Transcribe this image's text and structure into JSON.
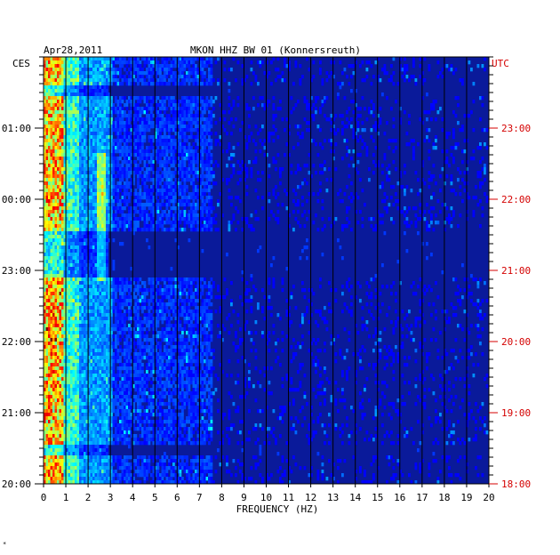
{
  "header": {
    "date": "Apr28,2011",
    "station": "MKON HHZ BW 01 (Konnersreuth)"
  },
  "left_zone_label": "CES",
  "right_zone_label": "UTC",
  "footer_mark": "*",
  "colors": {
    "background": "#ffffff",
    "axis": "#000000",
    "utc_labels": "#d40000",
    "spectrogram_base": "#0a1a9a"
  },
  "chart_data": {
    "type": "heatmap",
    "title": "MKON HHZ BW 01 (Konnersreuth)",
    "subtitle": "Apr28,2011",
    "xlabel": "FREQUENCY (HZ)",
    "ylabel": "",
    "xlim": [
      0,
      20
    ],
    "x_ticks": [
      "0",
      "1",
      "2",
      "3",
      "4",
      "5",
      "6",
      "7",
      "8",
      "9",
      "10",
      "11",
      "12",
      "13",
      "14",
      "15",
      "16",
      "17",
      "18",
      "19",
      "20"
    ],
    "left_axis_ticks": [
      "01:00",
      "00:00",
      "23:00",
      "22:00",
      "21:00",
      "20:00"
    ],
    "right_axis_ticks": [
      "23:00",
      "22:00",
      "21:00",
      "20:00",
      "19:00",
      "18:00"
    ],
    "colormap": "jet",
    "grid": true
  }
}
